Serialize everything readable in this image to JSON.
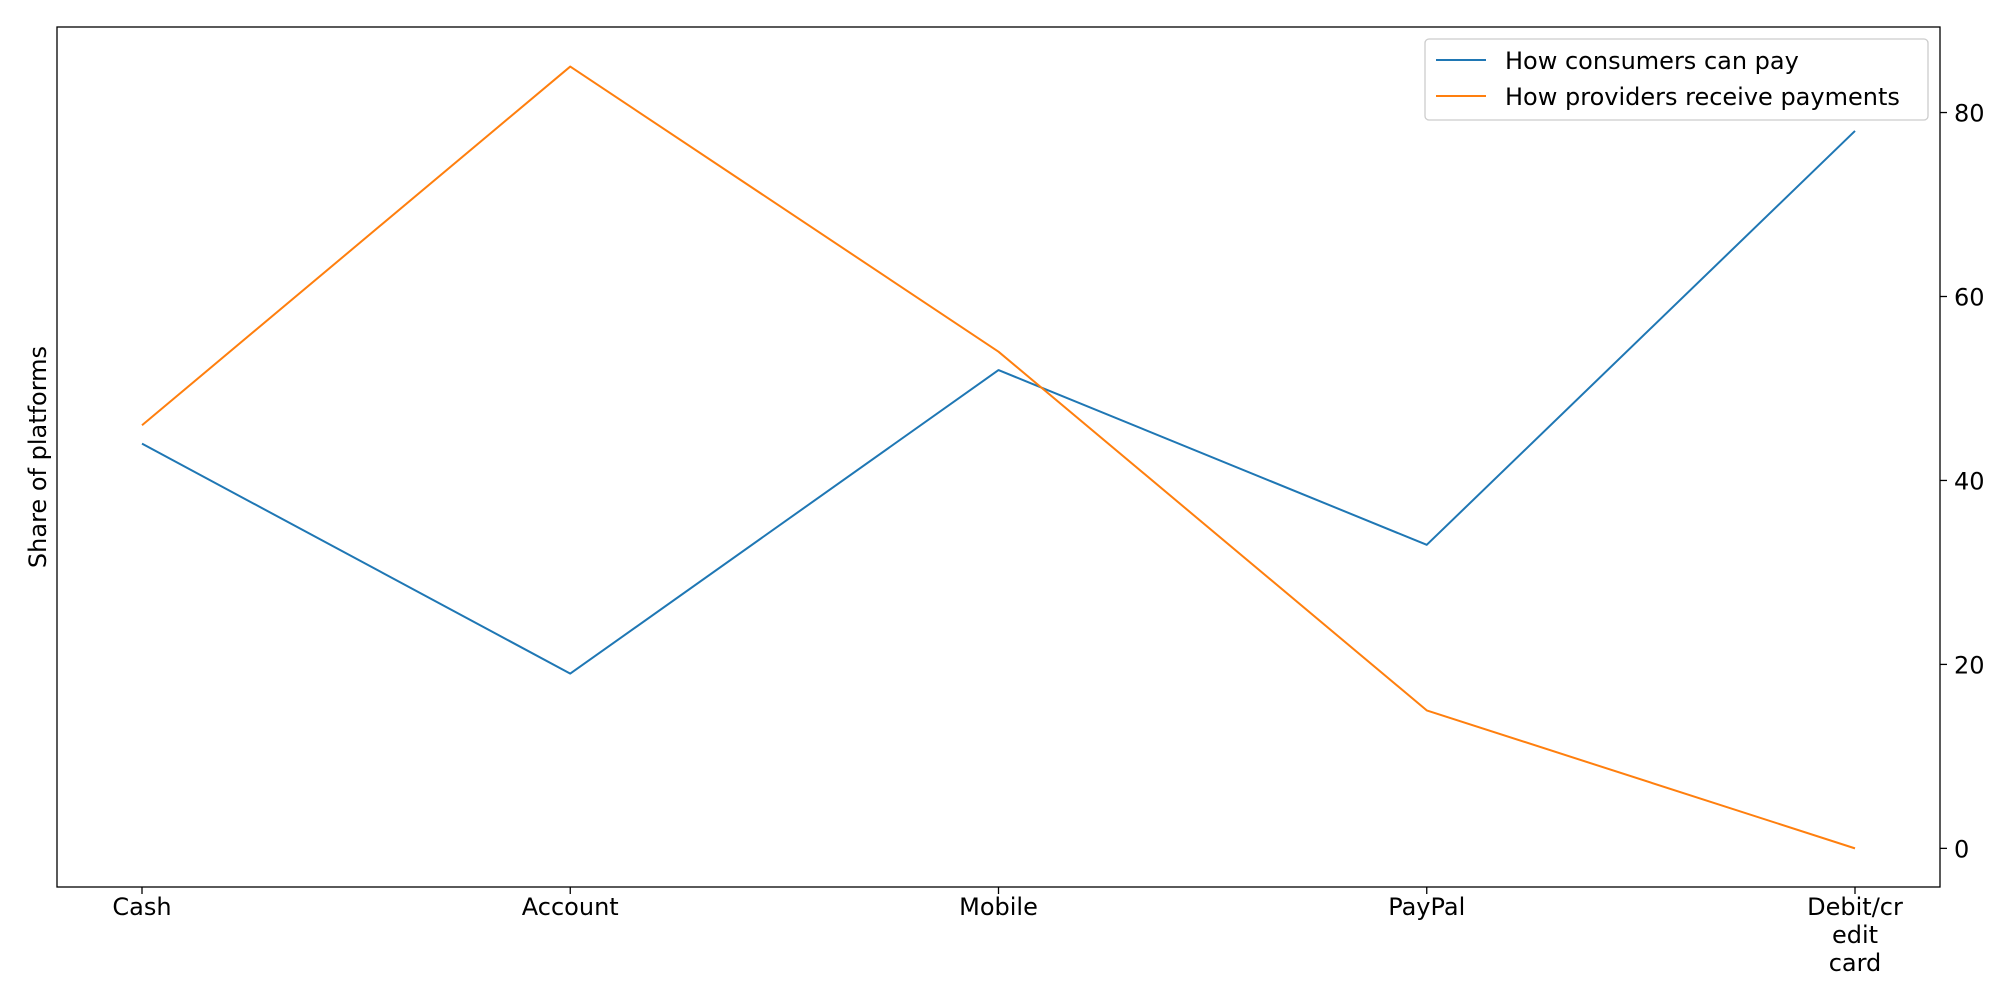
{
  "chart_data": {
    "type": "line",
    "categories": [
      "Cash",
      "Account",
      "Mobile",
      "PayPal",
      "Debit/credit card"
    ],
    "category_tick_lines": [
      [
        "Cash"
      ],
      [
        "Account"
      ],
      [
        "Mobile"
      ],
      [
        "PayPal"
      ],
      [
        "Debit/cr",
        "edit",
        "card"
      ]
    ],
    "series": [
      {
        "name": "How consumers can pay",
        "values": [
          44,
          19,
          52,
          33,
          78
        ],
        "color": "#1f77b4"
      },
      {
        "name": "How providers receive payments",
        "values": [
          46,
          85,
          54,
          15,
          0
        ],
        "color": "#ff7f0e"
      }
    ],
    "title": "",
    "xlabel": "",
    "ylabel": "Share of platforms",
    "ylim": [
      -4.2,
      89.3
    ],
    "yticks": [
      0,
      20,
      40,
      60,
      80
    ],
    "y_axis_side": "right",
    "grid": false,
    "legend_position": "top-right"
  }
}
